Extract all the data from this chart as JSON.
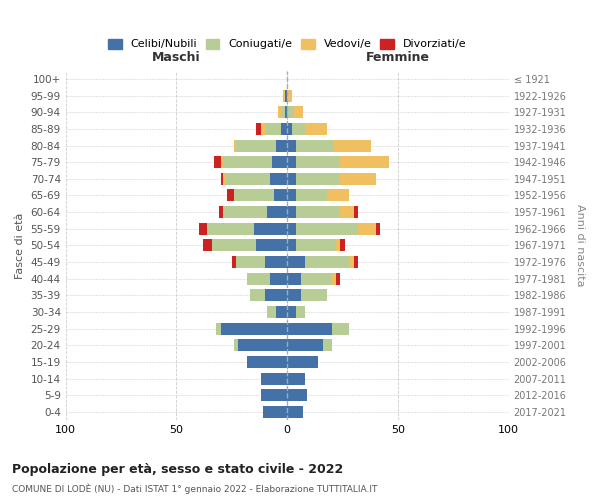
{
  "age_groups": [
    "100+",
    "95-99",
    "90-94",
    "85-89",
    "80-84",
    "75-79",
    "70-74",
    "65-69",
    "60-64",
    "55-59",
    "50-54",
    "45-49",
    "40-44",
    "35-39",
    "30-34",
    "25-29",
    "20-24",
    "15-19",
    "10-14",
    "5-9",
    "0-4"
  ],
  "birth_years": [
    "≤ 1921",
    "1922-1926",
    "1927-1931",
    "1932-1936",
    "1937-1941",
    "1942-1946",
    "1947-1951",
    "1952-1956",
    "1957-1961",
    "1962-1966",
    "1967-1971",
    "1972-1976",
    "1977-1981",
    "1982-1986",
    "1987-1991",
    "1992-1996",
    "1997-2001",
    "2002-2006",
    "2007-2011",
    "2012-2016",
    "2017-2021"
  ],
  "maschi_celibe": [
    0,
    1,
    1,
    3,
    5,
    7,
    8,
    6,
    9,
    15,
    14,
    10,
    8,
    10,
    5,
    30,
    22,
    18,
    12,
    12,
    11
  ],
  "maschi_coniugato": [
    0,
    0,
    2,
    7,
    18,
    22,
    20,
    18,
    20,
    21,
    20,
    13,
    10,
    7,
    4,
    2,
    2,
    0,
    0,
    0,
    0
  ],
  "maschi_vedovo": [
    0,
    1,
    1,
    2,
    1,
    1,
    1,
    0,
    0,
    0,
    0,
    0,
    0,
    0,
    0,
    0,
    0,
    0,
    0,
    0,
    0
  ],
  "maschi_divorziato": [
    0,
    0,
    0,
    2,
    0,
    3,
    1,
    3,
    2,
    4,
    4,
    2,
    0,
    0,
    0,
    0,
    0,
    0,
    0,
    0,
    0
  ],
  "femmine_celibe": [
    0,
    0,
    0,
    2,
    4,
    4,
    4,
    4,
    4,
    4,
    4,
    8,
    6,
    6,
    4,
    20,
    16,
    14,
    8,
    9,
    7
  ],
  "femmine_coniugato": [
    0,
    0,
    3,
    6,
    17,
    20,
    20,
    14,
    20,
    28,
    18,
    20,
    14,
    12,
    4,
    8,
    4,
    0,
    0,
    0,
    0
  ],
  "femmine_vedovo": [
    0,
    2,
    4,
    10,
    17,
    22,
    16,
    10,
    6,
    8,
    2,
    2,
    2,
    0,
    0,
    0,
    0,
    0,
    0,
    0,
    0
  ],
  "femmine_divorziato": [
    0,
    0,
    0,
    0,
    0,
    0,
    0,
    0,
    2,
    2,
    2,
    2,
    2,
    0,
    0,
    0,
    0,
    0,
    0,
    0,
    0
  ],
  "colors": {
    "celibe": "#4472a8",
    "coniugato": "#b8cc96",
    "vedovo": "#f0c060",
    "divorziato": "#cc2222"
  },
  "legend_labels": [
    "Celibi/Nubili",
    "Coniugati/e",
    "Vedovi/e",
    "Divorziati/e"
  ],
  "title": "Popolazione per età, sesso e stato civile - 2022",
  "subtitle": "COMUNE DI LODÈ (NU) - Dati ISTAT 1° gennaio 2022 - Elaborazione TUTTITALIA.IT",
  "xlabel_left": "Maschi",
  "xlabel_right": "Femmine",
  "ylabel": "Fasce di età",
  "ylabel_right": "Anni di nascita",
  "xlim": 100,
  "background_color": "#ffffff",
  "grid_color": "#cccccc"
}
